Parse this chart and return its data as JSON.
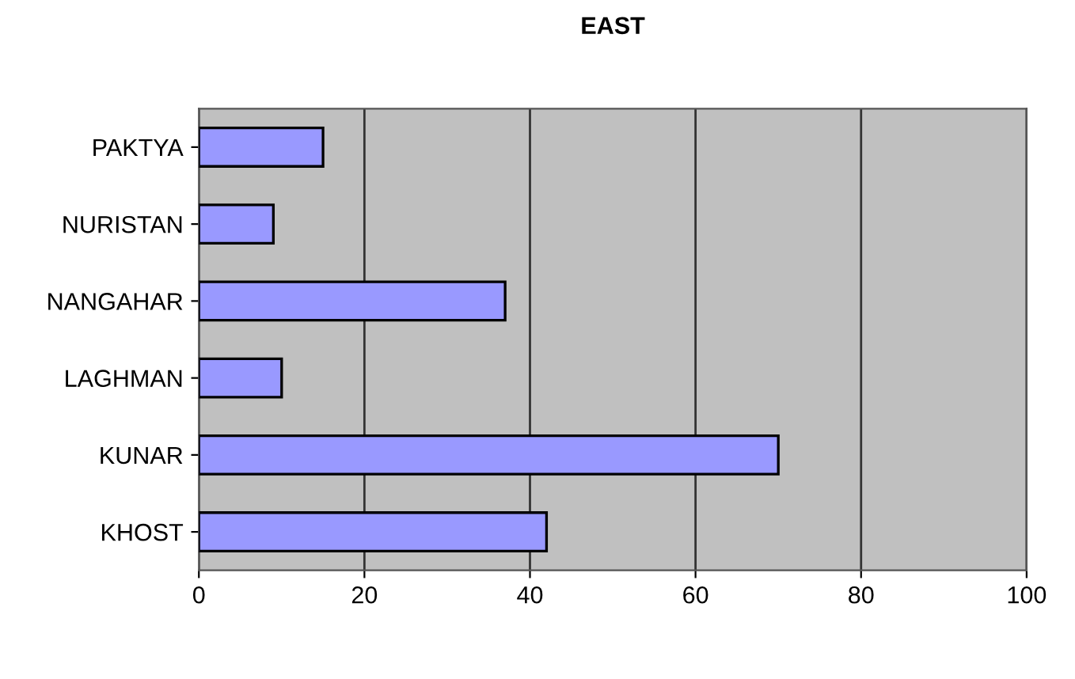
{
  "chart_data": {
    "type": "bar",
    "orientation": "horizontal",
    "title": "EAST",
    "categories": [
      "PAKTYA",
      "NURISTAN",
      "NANGAHAR",
      "LAGHMAN",
      "KUNAR",
      "KHOST"
    ],
    "values": [
      15,
      9,
      37,
      10,
      70,
      42
    ],
    "color": "#9999ff",
    "xlim": [
      0,
      100
    ],
    "xticks": [
      0,
      20,
      40,
      60,
      80,
      100
    ],
    "grid": "x",
    "legend": false
  }
}
